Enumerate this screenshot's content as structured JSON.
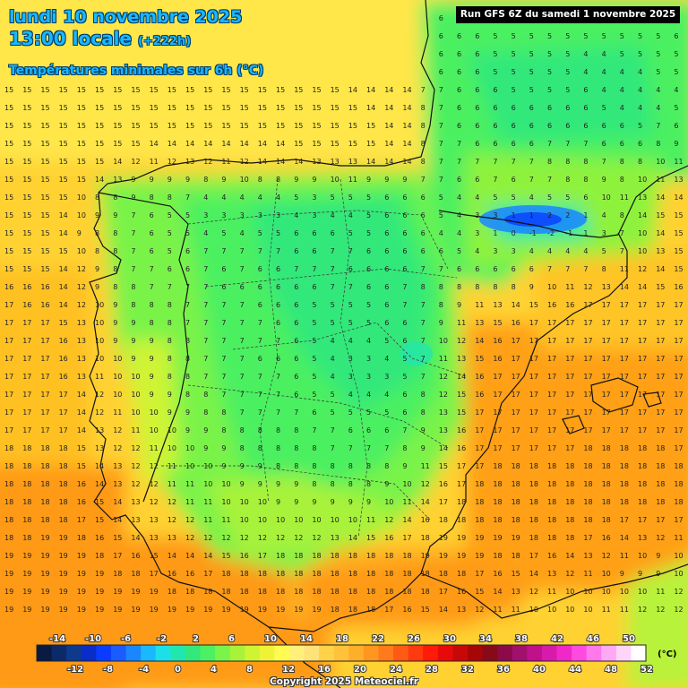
{
  "header": {
    "title": "lundi 10 novembre 2025",
    "time": "13:00 locale",
    "lead": "(+222h)",
    "subtitle": "Températures minimales sur 6h (°C)",
    "run": "Run GFS 6Z du samedi 1 novembre 2025"
  },
  "footer": {
    "copyright": "Copyright 2025 Meteociel.fr"
  },
  "legend": {
    "unit": "(°C)",
    "top_labels": [
      "-14",
      "-10",
      "-6",
      "-2",
      "2",
      "6",
      "10",
      "14",
      "18",
      "22",
      "26",
      "30",
      "34",
      "38",
      "42",
      "46",
      "50"
    ],
    "bottom_labels": [
      "-12",
      "-8",
      "-4",
      "0",
      "4",
      "8",
      "12",
      "16",
      "20",
      "24",
      "28",
      "32",
      "36",
      "40",
      "44",
      "48",
      "52"
    ],
    "colors": [
      "#0a1a40",
      "#0c2a6a",
      "#0d3a8c",
      "#0a2cc8",
      "#0a3cff",
      "#1a5cff",
      "#1a86ff",
      "#19b8ff",
      "#1ce0e8",
      "#22e6b0",
      "#33e87a",
      "#4cf060",
      "#7af34a",
      "#a8f23a",
      "#cff434",
      "#eef336",
      "#fffb52",
      "#fff07a",
      "#ffe27a",
      "#ffd24a",
      "#ffc23a",
      "#ffae2a",
      "#ff9620",
      "#ff7a1a",
      "#ff5a14",
      "#ff3a10",
      "#ff1a0a",
      "#e80a0a",
      "#c80808",
      "#a80606",
      "#880a18",
      "#8c0a4a",
      "#a0106c",
      "#c0108c",
      "#d81aac",
      "#f028c8",
      "#ff4ae0",
      "#ff78ec",
      "#ffa8f4",
      "#ffd4fa",
      "#ffffff"
    ]
  },
  "map": {
    "grid_values": [
      "14 14 14 15 15 15 15 15 14 14 14 14 14 14 14 14 13 13 13 14 14 13 15 9 6 6 6 6 5 5 5 5 5 6 6 6 6 6",
      "15 15 15 15 15 15 15 15 14 14 14 14 14 14 14 14 14 14 13 14 14 14 15 9 6 6 6 5 5 5 5 5 5 5 5 5 5 6",
      "15 15 15 15 15 15 15 15 15 15 15 14 14 14 14 14 14 14 14 14 14 14 15 8 6 6 6 5 5 5 5 5 4 4 5 5 5 5",
      "15 15 15 15 15 15 15 15 15 15 15 15 15 15 15 15 14 14 14 14 14 14 15 8 6 6 6 5 5 5 5 5 4 4 4 4 5 5",
      "15 15 15 15 15 15 15 15 15 15 15 15 15 15 15 15 15 15 15 14 14 14 14 7 7 6 6 6 5 5 5 5 6 4 4 4 4 4",
      "15 15 15 15 15 15 15 15 15 15 15 15 15 15 15 15 15 15 15 15 14 14 14 8 7 6 6 6 6 6 6 6 6 5 4 4 4 5",
      "15 15 15 15 15 15 15 15 15 15 15 15 15 15 15 15 15 15 15 15 15 14 14 8 7 6 6 6 6 6 6 6 6 6 6 5 7 6",
      "15 15 15 15 15 15 15 15 14 14 14 14 14 14 14 14 15 15 15 15 15 14 14 8 7 7 6 6 6 6 7 7 7 6 6 6 8 9",
      "15 15 15 15 15 15 14 12 11 12 13 12 11 12 14 14 14 13 13 13 14 14 14 8 7 7 7 7 7 7 8 8 8 7 8 8 10 11",
      "15 15 15 15 15 14 13 9 9 9 9 8 9 10 8 8 9 9 10 11 9 9 9 7 7 6 6 7 6 7 7 8 8 9 8 10 11 13",
      "15 15 15 15 10 8 8 9 8 8 7 4 4 4 4 4 5 3 5 5 5 6 6 6 5 4 4 5 5 4 5 5 6 10 11 13 14 14",
      "15 15 15 14 10 9 9 7 6 5 5 3 3 3 3 3 4 3 4 4 5 6 6 6 5 4 3 3 1 1 2 2 1 4 8 14 15 15",
      "15 15 15 14 9 8 8 7 6 5 5 4 5 4 5 5 6 6 6 5 5 6 6 6 4 4 3 1 0 -1 -2 -1 1 3 7 10 14 15",
      "15 15 15 15 10 8 8 7 6 5 6 7 7 7 7 7 6 6 7 7 6 6 6 6 6 5 4 3 3 4 4 4 4 5 7 10 13 15",
      "15 15 15 14 12 9 8 7 7 6 6 7 6 7 6 6 7 7 7 6 6 6 6 7 7 6 6 6 6 6 7 7 7 8 11 12 14 15",
      "16 16 16 14 12 9 8 8 7 7 7 7 6 6 6 6 6 6 7 7 6 6 7 8 8 8 8 8 8 9 10 11 12 13 14 14 15 16",
      "17 16 16 14 12 10 9 8 8 8 7 7 7 7 6 6 6 5 5 5 5 6 7 7 8 9 11 13 14 15 16 16 17 17 17 17 17 17",
      "17 17 17 15 13 10 9 9 8 8 7 7 7 7 7 6 6 5 5 5 5 6 6 7 9 11 13 15 16 17 17 17 17 17 17 17 17 17",
      "17 17 17 16 13 10 9 9 9 8 8 7 7 7 7 7 6 5 4 4 4 5 6 7 10 12 14 16 17 17 17 17 17 17 17 17 17 17",
      "17 17 17 16 13 10 10 9 9 8 8 7 7 7 6 6 6 5 4 3 3 4 5 7 11 13 15 16 17 17 17 17 17 17 17 17 17 17",
      "17 17 17 16 13 11 10 10 9 8 8 7 7 7 7 7 6 5 4 3 3 3 5 7 12 14 16 17 17 17 17 17 17 17 17 17 17 17",
      "17 17 17 17 14 12 10 10 9 9 8 8 7 7 7 7 6 5 5 4 4 4 6 8 12 15 16 17 17 17 17 17 17 17 17 17 17 17",
      "17 17 17 17 14 12 11 10 10 9 9 8 8 7 7 7 7 6 5 5 5 5 6 8 13 15 17 17 17 17 17 17 17 17 17 17 17 17",
      "17 17 17 17 14 13 12 11 10 10 9 9 8 8 8 8 8 7 7 6 6 6 7 9 13 16 17 17 17 17 17 17 17 17 17 17 17 17",
      "18 18 18 18 15 13 12 12 11 10 10 9 9 8 8 8 8 8 7 7 7 7 8 9 14 16 17 17 17 17 17 17 18 18 18 18 18 17",
      "18 18 18 18 15 14 13 12 12 11 10 10 9 9 9 8 8 8 8 8 8 8 9 11 15 17 17 18 18 18 18 18 18 18 18 18 18 18",
      "18 18 18 18 16 14 13 12 12 11 11 10 10 9 9 9 9 8 8 8 8 9 10 12 16 17 18 18 18 18 18 18 18 18 18 18 18 18",
      "18 18 18 18 16 15 14 13 12 12 11 11 10 10 10 9 9 9 9 9 9 10 11 14 17 18 18 18 18 18 18 18 18 18 18 18 18 18",
      "18 18 18 18 17 15 14 13 13 12 12 11 11 10 10 10 10 10 10 10 11 12 14 16 18 18 18 18 18 18 18 18 18 18 17 17 17 17",
      "18 18 19 19 18 16 15 14 13 13 12 12 12 12 12 12 12 12 13 14 15 16 17 18 19 19 19 19 19 18 18 18 17 16 14 13 12 11",
      "19 19 19 19 19 18 17 16 15 14 14 14 15 16 17 18 18 18 18 18 18 18 18 19 19 19 19 18 18 17 16 14 13 12 11 10 9 10",
      "19 19 19 19 19 19 18 18 17 16 16 17 18 18 18 18 18 18 18 18 18 18 18 18 18 18 17 16 15 14 13 12 11 10 9 9 9 10",
      "19 19 19 19 19 19 19 19 19 18 18 18 18 18 18 18 18 18 18 18 18 18 18 18 17 16 15 14 13 12 11 10 10 10 10 10 11 12",
      "19 19 19 19 19 19 19 19 19 19 19 19 19 19 19 19 19 19 18 18 18 17 16 15 14 13 12 11 11 10 10 10 10 11 11 12 12 12",
      "19 19 19 19 19 19 19 19 19 19 19 19 19 19 19 19 19 19 18 17 17 16 15 14 13 12 12 11 11 10 10 10 11 11 12 12 12 12",
      "19 19 19 19 19 19 19 19 19 19 19 19 19 19 19 19 19 18 18 17 16 15 14 13 13 12 11 11 11 11 11 11 11 11 11 12 12 12",
      "20 20 19 19 19 19 19 19 19 19 19 19 19 19 19 19 19 18 17 16 15 14 14 13 12 12 12 11 11 11 11 11 11 12 12 12 12 12",
      "20 20 20 19 19 19 19 19 19 19 19 19 19 19 19 19 19 18 17 16 15 14 14 13 12 12 12 11 11 11 11 11 11 12 12 12 12 12"
    ]
  }
}
